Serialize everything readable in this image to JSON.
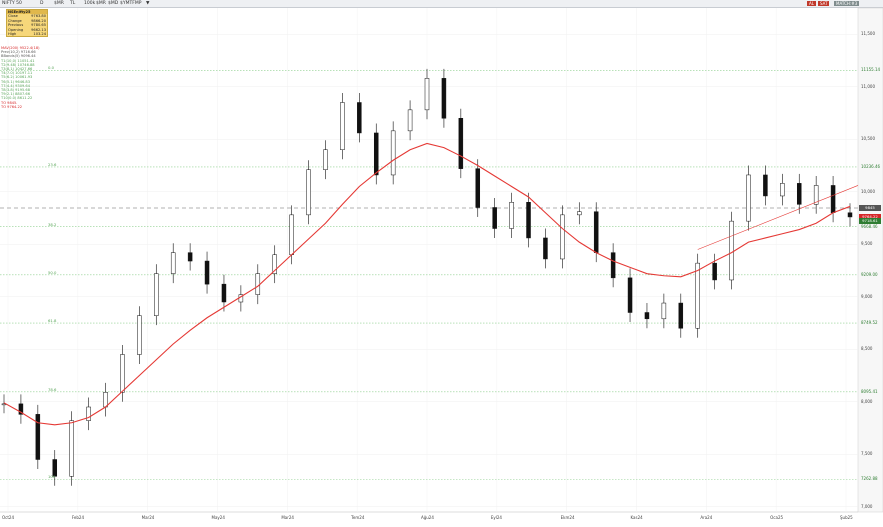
{
  "toolbar": {
    "symbol": "NIFTY 50",
    "items": [
      "D",
      "$MR",
      "TL",
      "100k",
      "$MR",
      "$MD",
      "$YMTFMP",
      "▼"
    ],
    "right_buttons": [
      {
        "label": "AL",
        "color": "#c0392b"
      },
      {
        "label": "SAT",
        "color": "#c0392b"
      },
      {
        "label": "MATCH:#3",
        "color": "#7f8c8d"
      }
    ]
  },
  "info_panel": {
    "title": "NSEnifty25",
    "rows": [
      {
        "label": "Close",
        "value": "9763.80"
      },
      {
        "label": "Change",
        "value": "9866.20"
      },
      {
        "label": "Previous",
        "value": "9780.65"
      },
      {
        "label": "Opening",
        "value": "9662.13"
      },
      {
        "label": "High",
        "value": "103.24"
      }
    ]
  },
  "legend": {
    "rows": [
      {
        "text": "MAV(200)",
        "value": "9522.4(18)",
        "color": "#d62728"
      },
      {
        "text": "Prev(10,2)",
        "value": "9716.66",
        "color": "#555555"
      },
      {
        "text": "BBands(5)",
        "value": "9096.44",
        "color": "#555555"
      },
      {
        "text": "T1(10,0)",
        "value": "11051.41",
        "color": "#56a356"
      },
      {
        "text": "T2(9.48)",
        "value": "10746.88",
        "color": "#56a356"
      },
      {
        "text": "T3(8.1)",
        "value": "10427.66",
        "color": "#56a356"
      },
      {
        "text": "T4(7.0)",
        "value": "10197.11",
        "color": "#56a356"
      },
      {
        "text": "T5(6.2)",
        "value": "10061.93",
        "color": "#56a356"
      },
      {
        "text": "T6(5.1)",
        "value": "9646.83",
        "color": "#56a356"
      },
      {
        "text": "T7(4.4)",
        "value": "9309.64",
        "color": "#56a356"
      },
      {
        "text": "T8(3.8)",
        "value": "9195.68",
        "color": "#56a356"
      },
      {
        "text": "T9(2.1)",
        "value": "8807.66",
        "color": "#56a356"
      },
      {
        "text": "T10(0.0)",
        "value": "8611.22",
        "color": "#56a356"
      },
      {
        "text": "TO 9845.",
        "value": "",
        "color": "#d62728"
      },
      {
        "text": "TO 9764.22",
        "value": "",
        "color": "#d62728"
      }
    ]
  },
  "fib_labels": [
    "0.0",
    "23.6",
    "38.2",
    "50.0",
    "61.8",
    "78.6",
    "100"
  ],
  "price_badges": [
    {
      "label": "9845",
      "color": "#555555",
      "value": 9845
    },
    {
      "label": "9764.22",
      "color": "#d62728",
      "value": 9764
    },
    {
      "label": "9718.61",
      "color": "#2e7d32",
      "value": 9719
    }
  ],
  "chart_data": {
    "type": "candlestick",
    "x_labels": [
      "Oct24",
      "Feb24",
      "Mar24",
      "May24",
      "Mar24",
      "Tem24",
      "Ağu24",
      "Eyl24",
      "Ekm24",
      "Kas24",
      "Ara24",
      "Oca25",
      "Şub25"
    ],
    "y_ticks": [
      7000,
      7500,
      8000,
      8500,
      9000,
      9500,
      10000,
      10500,
      11000,
      11500
    ],
    "ylim": [
      6950,
      11750
    ],
    "fib_levels": [
      {
        "label": "0.0",
        "value": 11155,
        "axis_label": "11155.14"
      },
      {
        "label": "23.6",
        "value": 10236,
        "axis_label": "10236.46"
      },
      {
        "label": "38.2",
        "value": 9668,
        "axis_label": "9668.46"
      },
      {
        "label": "50.0",
        "value": 9209,
        "axis_label": "9209.00"
      },
      {
        "label": "61.8",
        "value": 8749,
        "axis_label": "8749.52"
      },
      {
        "label": "78.6",
        "value": 8095,
        "axis_label": "8095.41"
      },
      {
        "label": "100",
        "value": 7262,
        "axis_label": "7262.88"
      }
    ],
    "horizontal_dashed": 9845,
    "close": [
      7980,
      7880,
      7450,
      7290,
      7820,
      7950,
      8090,
      8450,
      8820,
      9220,
      9420,
      9340,
      9120,
      8950,
      9020,
      9220,
      9400,
      9780,
      10210,
      10400,
      10850,
      10560,
      10160,
      10580,
      10780,
      11080,
      10700,
      10220,
      9850,
      9650,
      9900,
      9560,
      9360,
      9780,
      9810,
      9420,
      9180,
      8850,
      8790,
      8940,
      8700,
      9320,
      9160,
      9720,
      10160,
      9960,
      10080,
      9880,
      10060,
      9800,
      9760
    ],
    "ma200": [
      7990,
      7900,
      7800,
      7780,
      7800,
      7850,
      7950,
      8100,
      8250,
      8400,
      8550,
      8680,
      8800,
      8900,
      9000,
      9100,
      9250,
      9400,
      9550,
      9700,
      9880,
      10050,
      10180,
      10300,
      10400,
      10460,
      10420,
      10340,
      10250,
      10150,
      10050,
      9950,
      9800,
      9650,
      9520,
      9420,
      9340,
      9280,
      9220,
      9200,
      9190,
      9250,
      9340,
      9420,
      9520,
      9560,
      9600,
      9640,
      9700,
      9800,
      9860
    ],
    "trendline": {
      "from": [
        41,
        9450
      ],
      "to": [
        51,
        10060
      ]
    }
  }
}
